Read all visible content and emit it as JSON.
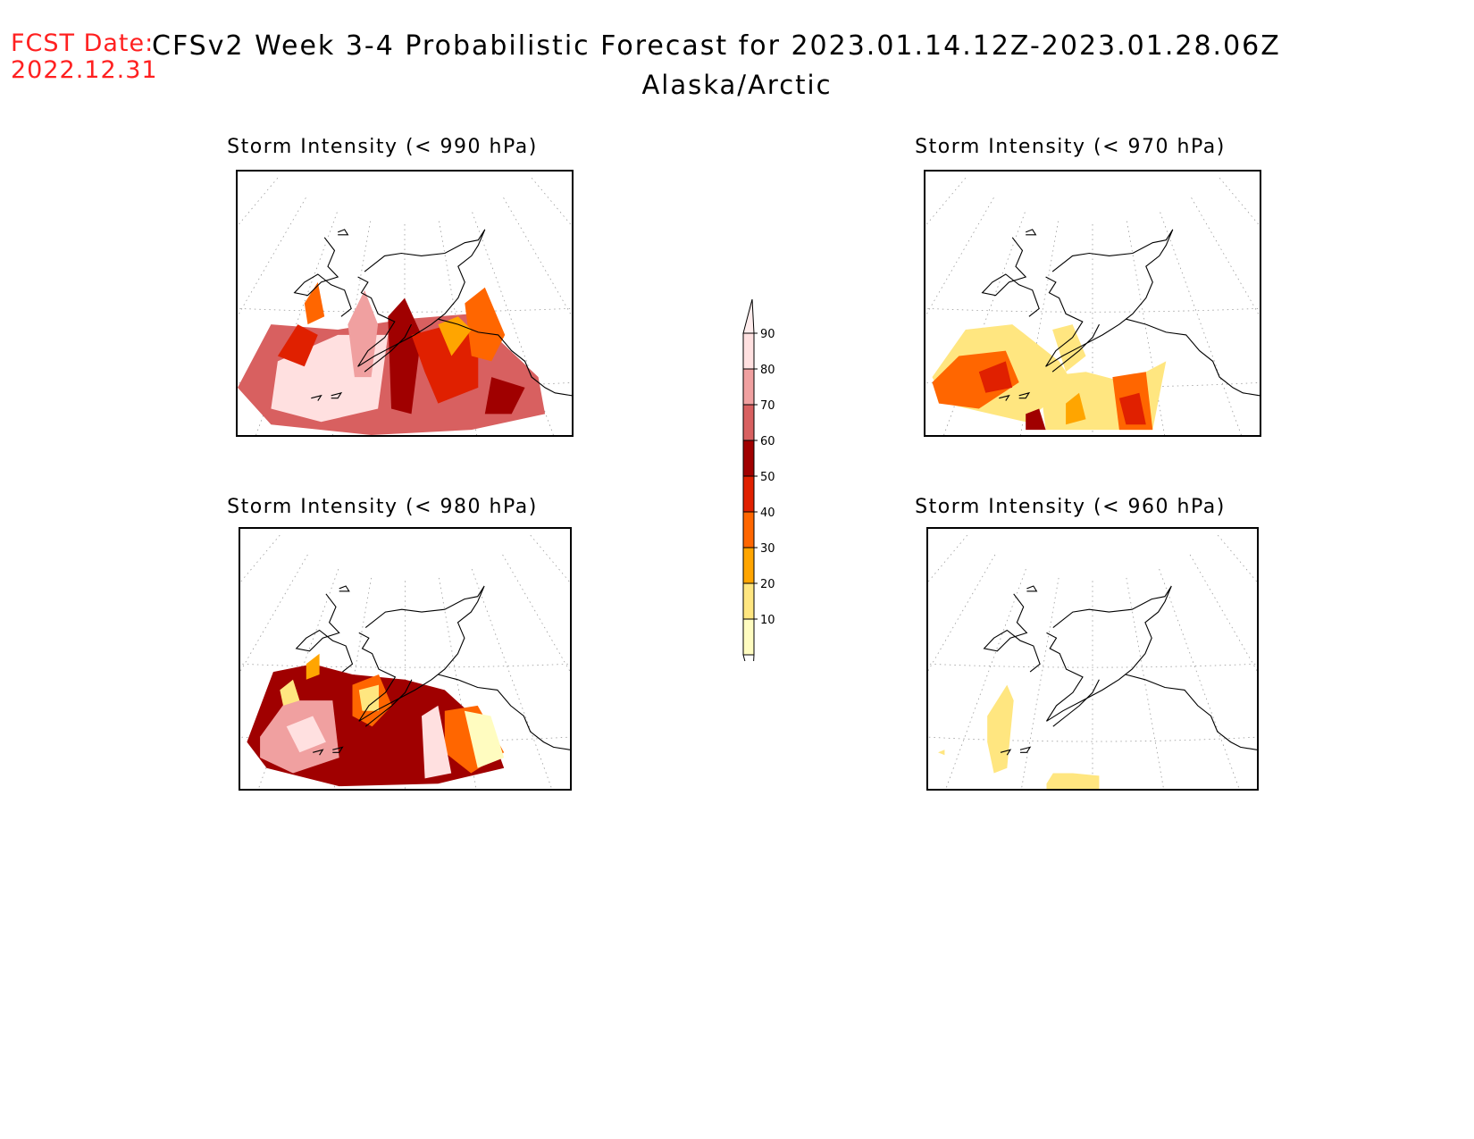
{
  "header": {
    "fcst_label": "FCST Date:",
    "fcst_date": "2022.12.31",
    "title": "CFSv2 Week 3-4 Probabilistic Forecast for 2023.01.14.12Z-2023.01.28.06Z",
    "region": "Alaska/Arctic"
  },
  "panels": [
    {
      "id": "p990",
      "title": "Storm Intensity (< 990 hPa)",
      "coverage": "high"
    },
    {
      "id": "p970",
      "title": "Storm Intensity (< 970 hPa)",
      "coverage": "medium"
    },
    {
      "id": "p980",
      "title": "Storm Intensity (< 980 hPa)",
      "coverage": "high"
    },
    {
      "id": "p960",
      "title": "Storm Intensity (< 960 hPa)",
      "coverage": "low"
    }
  ],
  "colorbar": {
    "levels": [
      "10",
      "20",
      "30",
      "40",
      "50",
      "60",
      "70",
      "80",
      "90"
    ],
    "colors": [
      "#fffcc0",
      "#ffe680",
      "#ffa500",
      "#ff6600",
      "#e02000",
      "#a00000",
      "#d86060",
      "#f0a0a0",
      "#ffe0e0"
    ]
  }
}
